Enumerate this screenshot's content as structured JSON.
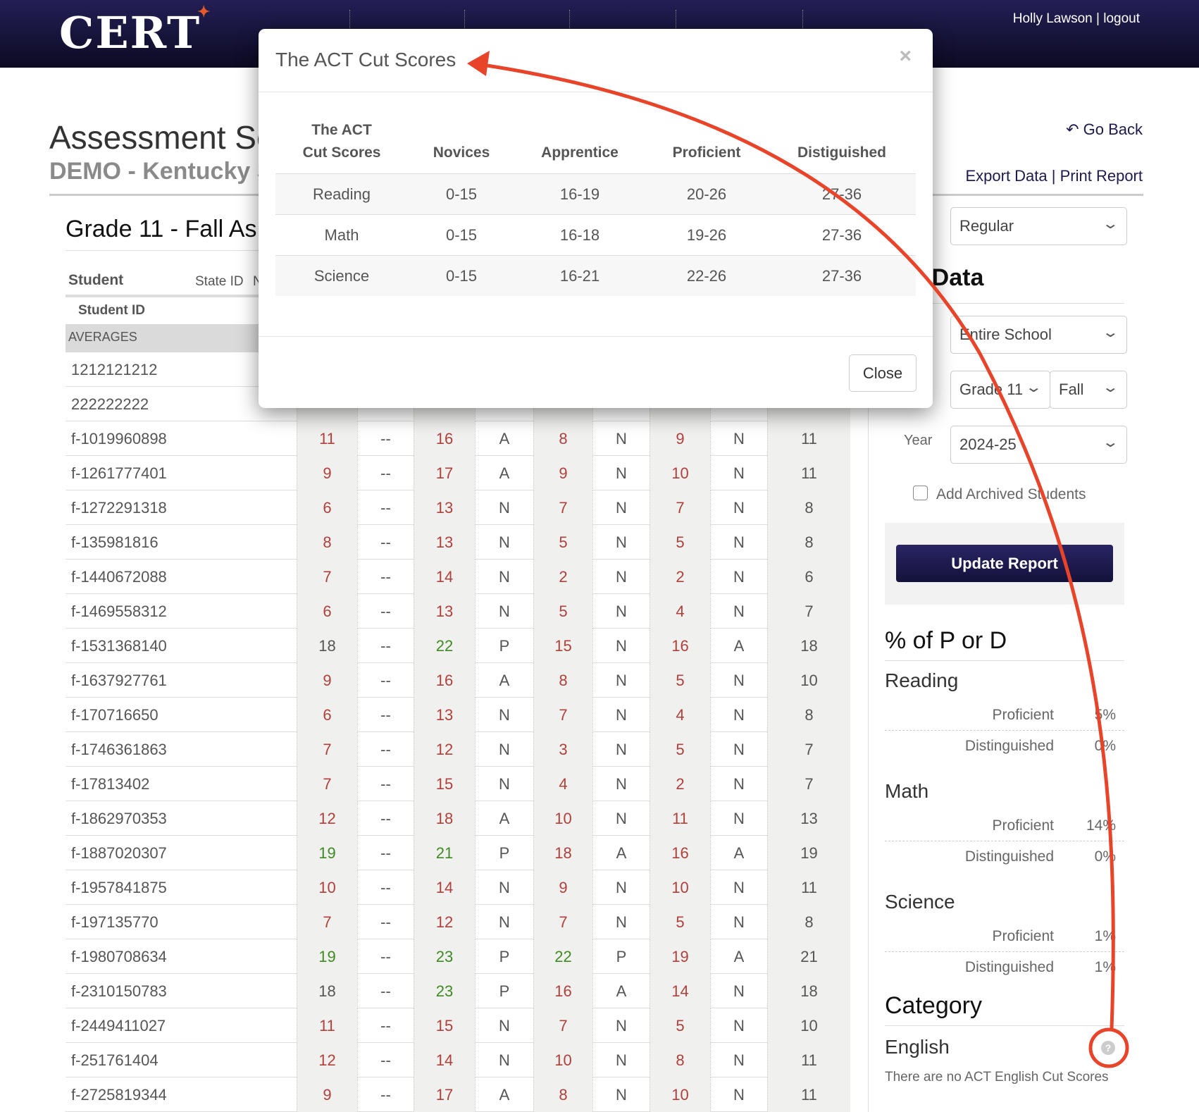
{
  "header": {
    "logo": "CERT",
    "user": "Holly Lawson",
    "separator": "|",
    "logout": "logout"
  },
  "page": {
    "title": "Assessment Sc",
    "subtitle": "DEMO - Kentucky Sc",
    "section": "Grade 11 - Fall As"
  },
  "table": {
    "headers": {
      "student": "Student",
      "state_id": "State ID",
      "next": "N",
      "student_id": "Student ID"
    },
    "averages_label": "AVERAGES",
    "rows": [
      {
        "id": "1212121212",
        "cells": [
          "",
          "",
          "",
          "",
          "",
          "",
          "",
          "",
          ""
        ]
      },
      {
        "id": "222222222",
        "cells": [
          "",
          "",
          "",
          "",
          "",
          "",
          "",
          "",
          ""
        ]
      },
      {
        "id": "f-1019960898",
        "cells": [
          "11",
          "--",
          "16",
          "A",
          "8",
          "N",
          "9",
          "N",
          "11"
        ]
      },
      {
        "id": "f-1261777401",
        "cells": [
          "9",
          "--",
          "17",
          "A",
          "9",
          "N",
          "10",
          "N",
          "11"
        ]
      },
      {
        "id": "f-1272291318",
        "cells": [
          "6",
          "--",
          "13",
          "N",
          "7",
          "N",
          "7",
          "N",
          "8"
        ]
      },
      {
        "id": "f-135981816",
        "cells": [
          "8",
          "--",
          "13",
          "N",
          "5",
          "N",
          "5",
          "N",
          "8"
        ]
      },
      {
        "id": "f-1440672088",
        "cells": [
          "7",
          "--",
          "14",
          "N",
          "2",
          "N",
          "2",
          "N",
          "6"
        ]
      },
      {
        "id": "f-1469558312",
        "cells": [
          "6",
          "--",
          "13",
          "N",
          "5",
          "N",
          "4",
          "N",
          "7"
        ]
      },
      {
        "id": "f-1531368140",
        "cells": [
          "18",
          "--",
          "22",
          "P",
          "15",
          "N",
          "16",
          "A",
          "18"
        ]
      },
      {
        "id": "f-1637927761",
        "cells": [
          "9",
          "--",
          "16",
          "A",
          "8",
          "N",
          "5",
          "N",
          "10"
        ]
      },
      {
        "id": "f-170716650",
        "cells": [
          "6",
          "--",
          "13",
          "N",
          "7",
          "N",
          "4",
          "N",
          "8"
        ]
      },
      {
        "id": "f-1746361863",
        "cells": [
          "7",
          "--",
          "12",
          "N",
          "3",
          "N",
          "5",
          "N",
          "7"
        ]
      },
      {
        "id": "f-17813402",
        "cells": [
          "7",
          "--",
          "15",
          "N",
          "4",
          "N",
          "2",
          "N",
          "7"
        ]
      },
      {
        "id": "f-1862970353",
        "cells": [
          "12",
          "--",
          "18",
          "A",
          "10",
          "N",
          "11",
          "N",
          "13"
        ]
      },
      {
        "id": "f-1887020307",
        "cells": [
          "19",
          "--",
          "21",
          "P",
          "18",
          "A",
          "16",
          "A",
          "19"
        ]
      },
      {
        "id": "f-1957841875",
        "cells": [
          "10",
          "--",
          "14",
          "N",
          "9",
          "N",
          "10",
          "N",
          "11"
        ]
      },
      {
        "id": "f-197135770",
        "cells": [
          "7",
          "--",
          "12",
          "N",
          "7",
          "N",
          "5",
          "N",
          "8"
        ]
      },
      {
        "id": "f-1980708634",
        "cells": [
          "19",
          "--",
          "23",
          "P",
          "22",
          "P",
          "19",
          "A",
          "21"
        ]
      },
      {
        "id": "f-2310150783",
        "cells": [
          "18",
          "--",
          "23",
          "P",
          "16",
          "A",
          "14",
          "N",
          "18"
        ]
      },
      {
        "id": "f-2449411027",
        "cells": [
          "11",
          "--",
          "15",
          "N",
          "7",
          "N",
          "5",
          "N",
          "10"
        ]
      },
      {
        "id": "f-251761404",
        "cells": [
          "12",
          "--",
          "14",
          "N",
          "10",
          "N",
          "8",
          "N",
          "11"
        ]
      },
      {
        "id": "f-2725819344",
        "cells": [
          "9",
          "--",
          "17",
          "A",
          "8",
          "N",
          "10",
          "N",
          "11"
        ]
      }
    ]
  },
  "sidebar": {
    "go_back": "Go Back",
    "export": "Export Data",
    "sep": "|",
    "print": "Print Report",
    "type_select": "Regular",
    "filter_heading": "r Data",
    "scope_select": "Entire School",
    "grade_select": "Grade 11",
    "term_select": "Fall",
    "year_label": "Year",
    "year_select": "2024-25",
    "archived_label": "Add Archived Students",
    "archived_checked": false,
    "update": "Update Report",
    "pct_heading": "% of P or D",
    "subjects": [
      {
        "name": "Reading",
        "proficient_label": "Proficient",
        "proficient": "5%",
        "distinguished_label": "Distinguished",
        "distinguished": "0%"
      },
      {
        "name": "Math",
        "proficient_label": "Proficient",
        "proficient": "14%",
        "distinguished_label": "Distinguished",
        "distinguished": "0%"
      },
      {
        "name": "Science",
        "proficient_label": "Proficient",
        "proficient": "1%",
        "distinguished_label": "Distinguished",
        "distinguished": "1%"
      }
    ],
    "category_heading": "Category",
    "category_name": "English",
    "category_note": "There are no ACT English Cut Scores"
  },
  "modal": {
    "title": "The ACT Cut Scores",
    "close_x": "×",
    "headers": [
      "The ACT\nCut Scores",
      "Novices",
      "Apprentice",
      "Proficient",
      "Distiguished"
    ],
    "rows": [
      [
        "Reading",
        "0-15",
        "16-19",
        "20-26",
        "27-36"
      ],
      [
        "Math",
        "0-15",
        "16-18",
        "19-26",
        "27-36"
      ],
      [
        "Science",
        "0-15",
        "16-21",
        "22-26",
        "27-36"
      ]
    ],
    "close_button": "Close"
  },
  "colors": {
    "brand": "#231f56",
    "annotation": "#e8442a",
    "below": "#b0403c",
    "proficient": "#3f8a22"
  }
}
